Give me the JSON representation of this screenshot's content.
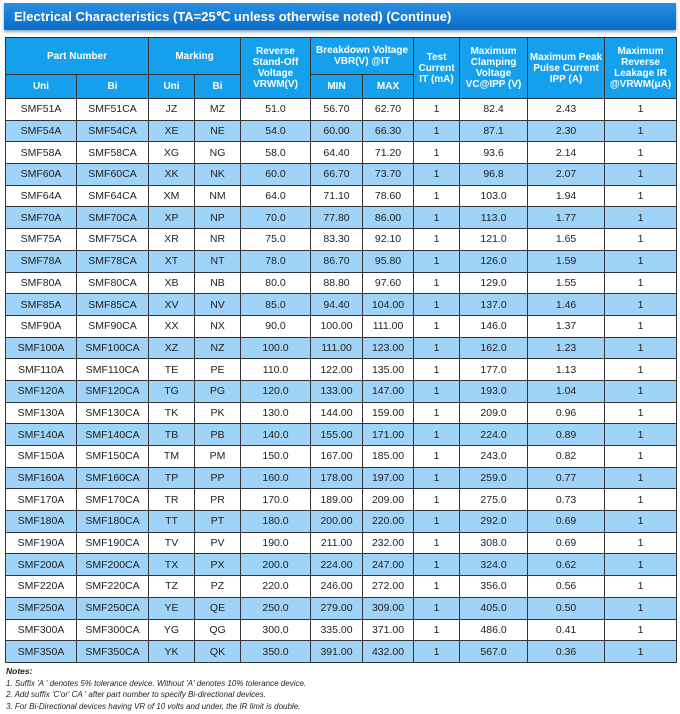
{
  "title": "Electrical Characteristics    (TA=25℃  unless otherwise noted) (Continue)",
  "headers": {
    "part_number": "Part Number",
    "marking": "Marking",
    "reverse": "Reverse Stand-Off Voltage VRWM(V)",
    "breakdown": "Breakdown Voltage VBR(V) @IT",
    "test": "Test Current IT (mA)",
    "clamping": "Maximum Clamping Voltage VC@IPP (V)",
    "peak": "Maximum Peak Pulse Current IPP (A)",
    "leakage": "Maximum Reverse Leakage IR @VRWM(μA)",
    "uni": "Uni",
    "bi": "Bi",
    "min": "MIN",
    "max": "MAX"
  },
  "rows": [
    [
      "SMF51A",
      "SMF51CA",
      "JZ",
      "MZ",
      "51.0",
      "56.70",
      "62.70",
      "1",
      "82.4",
      "2.43",
      "1"
    ],
    [
      "SMF54A",
      "SMF54CA",
      "XE",
      "NE",
      "54.0",
      "60.00",
      "66.30",
      "1",
      "87.1",
      "2.30",
      "1"
    ],
    [
      "SMF58A",
      "SMF58CA",
      "XG",
      "NG",
      "58.0",
      "64.40",
      "71.20",
      "1",
      "93.6",
      "2.14",
      "1"
    ],
    [
      "SMF60A",
      "SMF60CA",
      "XK",
      "NK",
      "60.0",
      "66.70",
      "73.70",
      "1",
      "96.8",
      "2.07",
      "1"
    ],
    [
      "SMF64A",
      "SMF64CA",
      "XM",
      "NM",
      "64.0",
      "71.10",
      "78.60",
      "1",
      "103.0",
      "1.94",
      "1"
    ],
    [
      "SMF70A",
      "SMF70CA",
      "XP",
      "NP",
      "70.0",
      "77.80",
      "86.00",
      "1",
      "113.0",
      "1.77",
      "1"
    ],
    [
      "SMF75A",
      "SMF75CA",
      "XR",
      "NR",
      "75.0",
      "83.30",
      "92.10",
      "1",
      "121.0",
      "1.65",
      "1"
    ],
    [
      "SMF78A",
      "SMF78CA",
      "XT",
      "NT",
      "78.0",
      "86.70",
      "95.80",
      "1",
      "126.0",
      "1.59",
      "1"
    ],
    [
      "SMF80A",
      "SMF80CA",
      "XB",
      "NB",
      "80.0",
      "88.80",
      "97.60",
      "1",
      "129.0",
      "1.55",
      "1"
    ],
    [
      "SMF85A",
      "SMF85CA",
      "XV",
      "NV",
      "85.0",
      "94.40",
      "104.00",
      "1",
      "137.0",
      "1.46",
      "1"
    ],
    [
      "SMF90A",
      "SMF90CA",
      "XX",
      "NX",
      "90.0",
      "100.00",
      "111.00",
      "1",
      "146.0",
      "1.37",
      "1"
    ],
    [
      "SMF100A",
      "SMF100CA",
      "XZ",
      "NZ",
      "100.0",
      "111.00",
      "123.00",
      "1",
      "162.0",
      "1.23",
      "1"
    ],
    [
      "SMF110A",
      "SMF110CA",
      "TE",
      "PE",
      "110.0",
      "122.00",
      "135.00",
      "1",
      "177.0",
      "1.13",
      "1"
    ],
    [
      "SMF120A",
      "SMF120CA",
      "TG",
      "PG",
      "120.0",
      "133.00",
      "147.00",
      "1",
      "193.0",
      "1.04",
      "1"
    ],
    [
      "SMF130A",
      "SMF130CA",
      "TK",
      "PK",
      "130.0",
      "144.00",
      "159.00",
      "1",
      "209.0",
      "0.96",
      "1"
    ],
    [
      "SMF140A",
      "SMF140CA",
      "TB",
      "PB",
      "140.0",
      "155.00",
      "171.00",
      "1",
      "224.0",
      "0.89",
      "1"
    ],
    [
      "SMF150A",
      "SMF150CA",
      "TM",
      "PM",
      "150.0",
      "167.00",
      "185.00",
      "1",
      "243.0",
      "0.82",
      "1"
    ],
    [
      "SMF160A",
      "SMF160CA",
      "TP",
      "PP",
      "160.0",
      "178.00",
      "197.00",
      "1",
      "259.0",
      "0.77",
      "1"
    ],
    [
      "SMF170A",
      "SMF170CA",
      "TR",
      "PR",
      "170.0",
      "189.00",
      "209.00",
      "1",
      "275.0",
      "0.73",
      "1"
    ],
    [
      "SMF180A",
      "SMF180CA",
      "TT",
      "PT",
      "180.0",
      "200.00",
      "220.00",
      "1",
      "292.0",
      "0.69",
      "1"
    ],
    [
      "SMF190A",
      "SMF190CA",
      "TV",
      "PV",
      "190.0",
      "211.00",
      "232.00",
      "1",
      "308.0",
      "0.69",
      "1"
    ],
    [
      "SMF200A",
      "SMF200CA",
      "TX",
      "PX",
      "200.0",
      "224.00",
      "247.00",
      "1",
      "324.0",
      "0.62",
      "1"
    ],
    [
      "SMF220A",
      "SMF220CA",
      "TZ",
      "PZ",
      "220.0",
      "246.00",
      "272.00",
      "1",
      "356.0",
      "0.56",
      "1"
    ],
    [
      "SMF250A",
      "SMF250CA",
      "YE",
      "QE",
      "250.0",
      "279.00",
      "309.00",
      "1",
      "405.0",
      "0.50",
      "1"
    ],
    [
      "SMF300A",
      "SMF300CA",
      "YG",
      "QG",
      "300.0",
      "335.00",
      "371.00",
      "1",
      "486.0",
      "0.41",
      "1"
    ],
    [
      "SMF350A",
      "SMF350CA",
      "YK",
      "QK",
      "350.0",
      "391.00",
      "432.00",
      "1",
      "567.0",
      "0.36",
      "1"
    ]
  ],
  "notes": {
    "heading": "Notes:",
    "items": [
      "1. Suffix 'A ' denotes 5% tolerance device. Without 'A' denotes 10% tolerance device.",
      "2. Add suffix 'C'or' CA ' after part number to specify Bi-directional devices.",
      "3. For Bi-Directional devices having VR of 10 volts and under, the IR limit is double."
    ]
  }
}
